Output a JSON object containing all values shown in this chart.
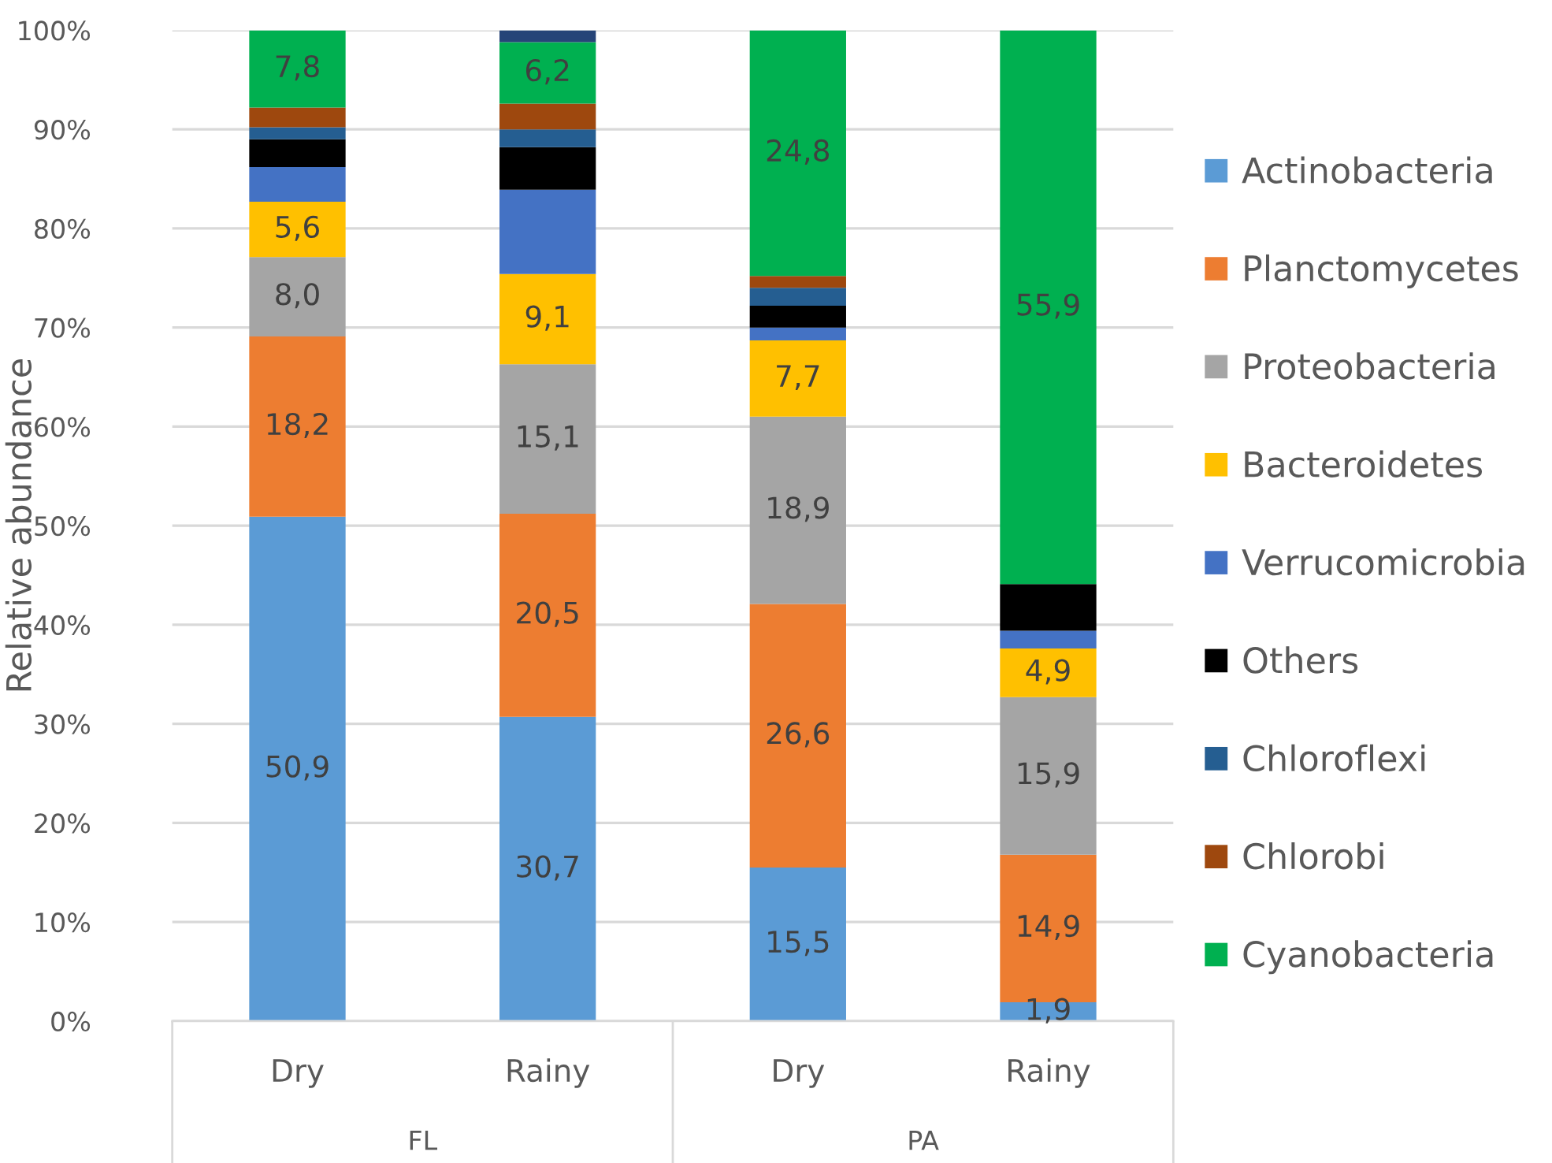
{
  "chart_data": {
    "type": "bar",
    "stacked": true,
    "ylabel": "Relative abundance",
    "categories": [
      "Dry",
      "Rainy",
      "Dry",
      "Rainy"
    ],
    "annotations": [
      "FL",
      "PA"
    ],
    "series": [
      {
        "name": "Actinobacteria",
        "color": "#5b9bd5",
        "values": [
          50.9,
          30.7,
          15.5,
          1.9
        ],
        "value_labels": [
          "50,9",
          "30,7",
          "15,5",
          "1,9"
        ]
      },
      {
        "name": "Planctomycetes",
        "color": "#ed7d31",
        "values": [
          18.2,
          20.5,
          26.6,
          14.9
        ],
        "value_labels": [
          "18,2",
          "20,5",
          "26,6",
          "14,9"
        ]
      },
      {
        "name": "Proteobacteria",
        "color": "#a5a5a5",
        "values": [
          8.0,
          15.1,
          18.9,
          15.9
        ],
        "value_labels": [
          "8,0",
          "15,1",
          "18,9",
          "15,9"
        ]
      },
      {
        "name": "Bacteroidetes",
        "color": "#ffc000",
        "values": [
          5.6,
          9.1,
          7.7,
          4.9
        ],
        "value_labels": [
          "5,6",
          "9,1",
          "7,7",
          "4,9"
        ]
      },
      {
        "name": "Verrucomicrobia",
        "color": "#4472c4",
        "values": [
          3.5,
          8.5,
          1.3,
          1.8
        ]
      },
      {
        "name": "Others",
        "color": "#000000",
        "values": [
          2.8,
          4.3,
          2.2,
          4.7
        ]
      },
      {
        "name": "Chloroflexi",
        "color": "#255e91",
        "values": [
          1.2,
          1.8,
          1.8,
          null
        ]
      },
      {
        "name": "Chlorobi",
        "color": "#9e480e",
        "values": [
          2.0,
          2.6,
          1.2,
          null
        ]
      },
      {
        "name": "Cyanobacteria",
        "color": "#00b050",
        "values": [
          7.8,
          6.2,
          24.8,
          55.9
        ],
        "value_labels": [
          "7,8",
          "6,2",
          "24,8",
          "55,9"
        ]
      },
      {
        "color": "#264478",
        "values": [
          null,
          1.2,
          null,
          null
        ]
      }
    ],
    "ylim": [
      0,
      100
    ],
    "yticks": [
      {
        "value": 0,
        "label": "0%"
      },
      {
        "value": 10,
        "label": "10%"
      },
      {
        "value": 20,
        "label": "20%"
      },
      {
        "value": 30,
        "label": "30%"
      },
      {
        "value": 40,
        "label": "40%"
      },
      {
        "value": 50,
        "label": "50%"
      },
      {
        "value": 60,
        "label": "60%"
      },
      {
        "value": 70,
        "label": "70%"
      },
      {
        "value": 80,
        "label": "80%"
      },
      {
        "value": 90,
        "label": "90%"
      },
      {
        "value": 100,
        "label": "100%"
      }
    ],
    "grid": "y",
    "legend": "right"
  }
}
